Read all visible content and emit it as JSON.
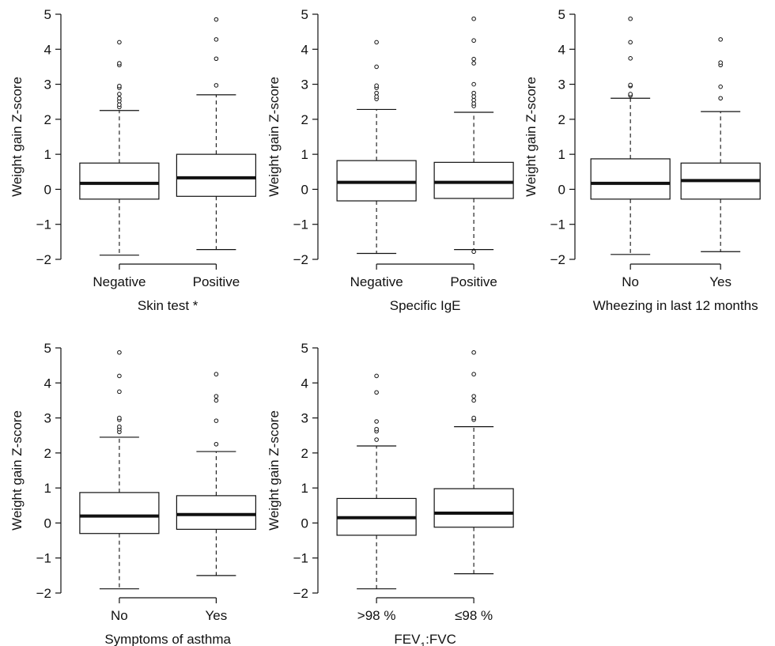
{
  "chart_data": [
    {
      "type": "box",
      "xlabel": "Skin test *",
      "xlabel_sub": "",
      "xlabel_after": "",
      "ylabel": "Weight gain Z-score",
      "ylim": [
        -2,
        5
      ],
      "yticks": [
        "−2",
        "−1",
        "0",
        "1",
        "2",
        "3",
        "4",
        "5"
      ],
      "categories": [
        "Negative",
        "Positive"
      ],
      "boxes": [
        {
          "whisker_low": -1.88,
          "q1": -0.28,
          "median": 0.17,
          "q3": 0.75,
          "whisker_high": 2.25,
          "outliers": [
            2.35,
            2.42,
            2.52,
            2.6,
            2.72,
            2.9,
            2.95,
            3.55,
            3.6,
            4.2
          ]
        },
        {
          "whisker_low": -1.72,
          "q1": -0.2,
          "median": 0.33,
          "q3": 1.0,
          "whisker_high": 2.7,
          "outliers": [
            2.97,
            3.73,
            4.28,
            4.85
          ]
        }
      ]
    },
    {
      "type": "box",
      "xlabel": "Specific IgE",
      "xlabel_sub": "",
      "xlabel_after": "",
      "ylabel": "Weight gain Z-score",
      "ylim": [
        -2,
        5
      ],
      "yticks": [
        "−2",
        "−1",
        "0",
        "1",
        "2",
        "3",
        "4",
        "5"
      ],
      "categories": [
        "Negative",
        "Positive"
      ],
      "boxes": [
        {
          "whisker_low": -1.83,
          "q1": -0.33,
          "median": 0.2,
          "q3": 0.82,
          "whisker_high": 2.28,
          "outliers": [
            2.58,
            2.65,
            2.75,
            2.9,
            2.96,
            3.5,
            4.2
          ]
        },
        {
          "whisker_low": -1.72,
          "q1": -0.26,
          "median": 0.2,
          "q3": 0.77,
          "whisker_high": 2.2,
          "outliers": [
            -1.78,
            2.38,
            2.45,
            2.55,
            2.65,
            2.75,
            3.0,
            3.6,
            3.72,
            4.25,
            4.87
          ]
        }
      ]
    },
    {
      "type": "box",
      "xlabel": "Wheezing in last 12 months",
      "xlabel_sub": "",
      "xlabel_after": "",
      "ylabel": "Weight gain Z-score",
      "ylim": [
        -2,
        5
      ],
      "yticks": [
        "−2",
        "−1",
        "0",
        "1",
        "2",
        "3",
        "4",
        "5"
      ],
      "categories": [
        "No",
        "Yes"
      ],
      "boxes": [
        {
          "whisker_low": -1.86,
          "q1": -0.28,
          "median": 0.17,
          "q3": 0.87,
          "whisker_high": 2.6,
          "outliers": [
            2.68,
            2.72,
            2.95,
            2.98,
            3.74,
            4.2,
            4.87
          ]
        },
        {
          "whisker_low": -1.78,
          "q1": -0.28,
          "median": 0.25,
          "q3": 0.75,
          "whisker_high": 2.22,
          "outliers": [
            2.6,
            2.93,
            3.55,
            3.62,
            4.28
          ]
        }
      ]
    },
    {
      "type": "box",
      "xlabel": "Symptoms of asthma",
      "xlabel_sub": "",
      "xlabel_after": "",
      "ylabel": "Weight gain Z-score",
      "ylim": [
        -2,
        5
      ],
      "yticks": [
        "−2",
        "−1",
        "0",
        "1",
        "2",
        "3",
        "4",
        "5"
      ],
      "categories": [
        "No",
        "Yes"
      ],
      "boxes": [
        {
          "whisker_low": -1.88,
          "q1": -0.3,
          "median": 0.2,
          "q3": 0.87,
          "whisker_high": 2.45,
          "outliers": [
            2.6,
            2.68,
            2.75,
            2.95,
            3.0,
            3.75,
            4.2,
            4.87
          ]
        },
        {
          "whisker_low": -1.5,
          "q1": -0.18,
          "median": 0.24,
          "q3": 0.78,
          "whisker_high": 2.04,
          "outliers": [
            2.25,
            2.92,
            3.5,
            3.62,
            4.25
          ]
        }
      ]
    },
    {
      "type": "box",
      "xlabel": "FEV",
      "xlabel_sub": "1",
      "xlabel_after": ":FVC",
      "ylabel": "Weight gain Z-score",
      "ylim": [
        -2,
        5
      ],
      "yticks": [
        "−2",
        "−1",
        "0",
        "1",
        "2",
        "3",
        "4",
        "5"
      ],
      "categories": [
        ">98 %",
        "≤98 %"
      ],
      "boxes": [
        {
          "whisker_low": -1.88,
          "q1": -0.35,
          "median": 0.15,
          "q3": 0.7,
          "whisker_high": 2.2,
          "outliers": [
            2.38,
            2.62,
            2.68,
            2.9,
            3.73,
            4.2
          ]
        },
        {
          "whisker_low": -1.45,
          "q1": -0.12,
          "median": 0.28,
          "q3": 0.98,
          "whisker_high": 2.75,
          "outliers": [
            2.95,
            3.0,
            3.5,
            3.62,
            4.25,
            4.87
          ]
        }
      ]
    }
  ]
}
